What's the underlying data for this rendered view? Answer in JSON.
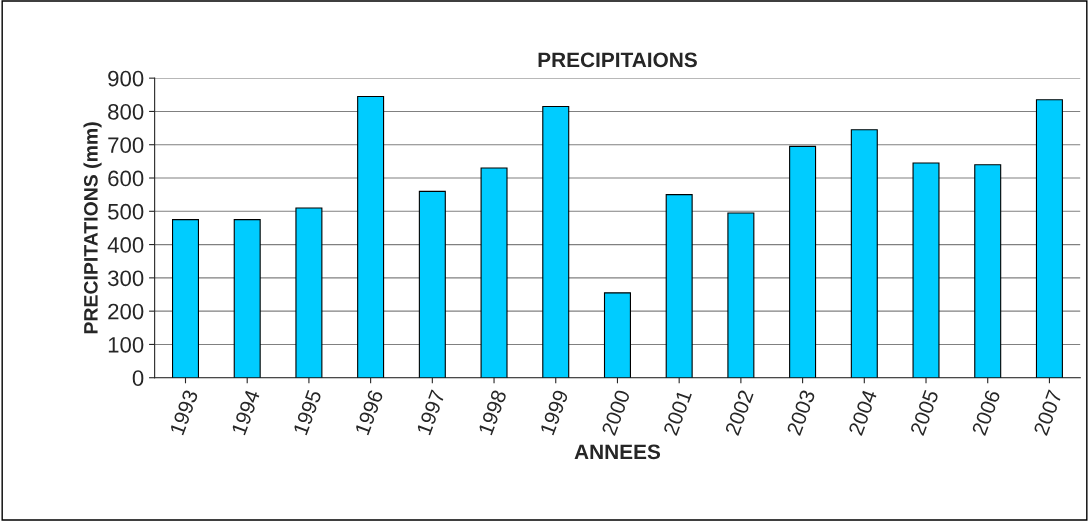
{
  "chart_data": {
    "type": "bar",
    "title": "PRECIPITAIONS",
    "xlabel": "ANNEES",
    "ylabel": "PRECIPITATIONS (mm)",
    "categories": [
      "1993",
      "1994",
      "1995",
      "1996",
      "1997",
      "1998",
      "1999",
      "2000",
      "2001",
      "2002",
      "2003",
      "2004",
      "2005",
      "2006",
      "2007"
    ],
    "values": [
      475,
      475,
      510,
      845,
      560,
      630,
      815,
      255,
      550,
      495,
      695,
      745,
      645,
      640,
      835
    ],
    "color": "#00ccff",
    "ylim": [
      0,
      900
    ],
    "yticks": [
      0,
      100,
      200,
      300,
      400,
      500,
      600,
      700,
      800,
      900
    ],
    "grid": "y",
    "legend": false
  }
}
